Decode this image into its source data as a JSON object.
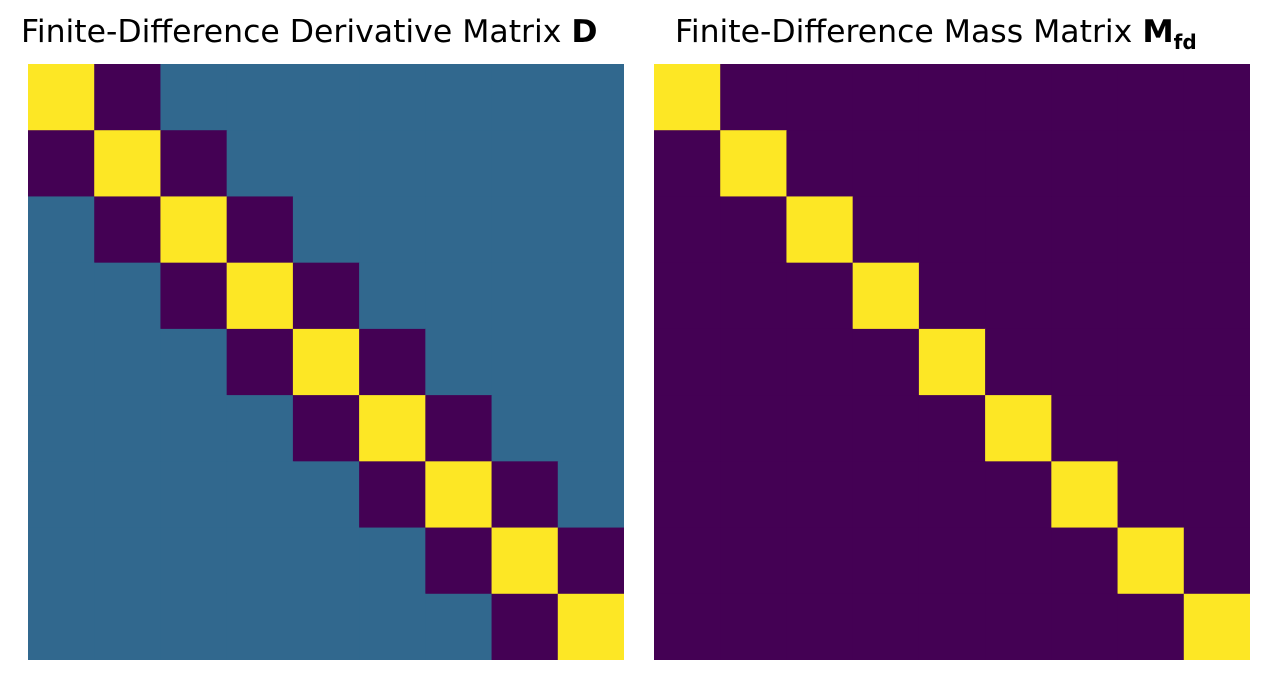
{
  "colors": {
    "high": "#fde725",
    "mid": "#31688e",
    "low": "#440154",
    "background": "#ffffff"
  },
  "chart_data": [
    {
      "type": "heatmap",
      "title": "Finite-Difference Derivative Matrix",
      "title_symbol": "D",
      "title_subscript": "",
      "colormap": "viridis",
      "axes_visible": false,
      "matrix": [
        [
          1,
          -1,
          0,
          0,
          0,
          0,
          0,
          0,
          0
        ],
        [
          -1,
          1,
          -1,
          0,
          0,
          0,
          0,
          0,
          0
        ],
        [
          0,
          -1,
          1,
          -1,
          0,
          0,
          0,
          0,
          0
        ],
        [
          0,
          0,
          -1,
          1,
          -1,
          0,
          0,
          0,
          0
        ],
        [
          0,
          0,
          0,
          -1,
          1,
          -1,
          0,
          0,
          0
        ],
        [
          0,
          0,
          0,
          0,
          -1,
          1,
          -1,
          0,
          0
        ],
        [
          0,
          0,
          0,
          0,
          0,
          -1,
          1,
          -1,
          0
        ],
        [
          0,
          0,
          0,
          0,
          0,
          0,
          -1,
          1,
          -1
        ],
        [
          0,
          0,
          0,
          0,
          0,
          0,
          0,
          -1,
          1
        ]
      ]
    },
    {
      "type": "heatmap",
      "title": "Finite-Difference Mass Matrix",
      "title_symbol": "M",
      "title_subscript": "fd",
      "colormap": "viridis",
      "axes_visible": false,
      "matrix": [
        [
          1,
          0,
          0,
          0,
          0,
          0,
          0,
          0,
          0
        ],
        [
          0,
          1,
          0,
          0,
          0,
          0,
          0,
          0,
          0
        ],
        [
          0,
          0,
          1,
          0,
          0,
          0,
          0,
          0,
          0
        ],
        [
          0,
          0,
          0,
          1,
          0,
          0,
          0,
          0,
          0
        ],
        [
          0,
          0,
          0,
          0,
          1,
          0,
          0,
          0,
          0
        ],
        [
          0,
          0,
          0,
          0,
          0,
          1,
          0,
          0,
          0
        ],
        [
          0,
          0,
          0,
          0,
          0,
          0,
          1,
          0,
          0
        ],
        [
          0,
          0,
          0,
          0,
          0,
          0,
          0,
          1,
          0
        ],
        [
          0,
          0,
          0,
          0,
          0,
          0,
          0,
          0,
          1
        ]
      ]
    }
  ]
}
